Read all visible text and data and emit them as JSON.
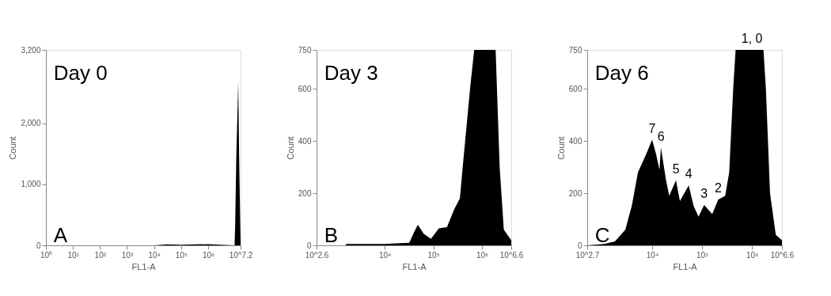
{
  "chart_data": [
    {
      "type": "area",
      "xlabel": "FL1-A",
      "ylabel": "Count",
      "log": "x",
      "grid": false,
      "annotations": [
        "Day 0",
        "A"
      ],
      "xlim": [
        1,
        15848932
      ],
      "xticks": [
        {
          "value": 1,
          "label": "10⁰"
        },
        {
          "value": 10,
          "label": "10¹"
        },
        {
          "value": 100,
          "label": "10²"
        },
        {
          "value": 1000,
          "label": "10³"
        },
        {
          "value": 10000,
          "label": "10⁴"
        },
        {
          "value": 100000,
          "label": "10⁵"
        },
        {
          "value": 1000000,
          "label": "10⁶"
        },
        {
          "value": 15848932,
          "label": "10^7.2"
        }
      ],
      "ylim": [
        0,
        3200
      ],
      "yticks": [
        0,
        {
          "value": 1000,
          "label": "1,000"
        },
        {
          "value": 2000,
          "label": "2,000"
        },
        {
          "value": 3200,
          "label": "3,200"
        }
      ],
      "series": [
        {
          "color": "#000000",
          "x": [
            1,
            10000,
            30000,
            100000,
            1000000,
            9500000,
            10000000,
            11000000,
            13000000,
            14000000,
            15848932
          ],
          "values": [
            0,
            0,
            15,
            10,
            20,
            0,
            350,
            1450,
            2680,
            1450,
            0
          ]
        }
      ]
    },
    {
      "type": "area",
      "xlabel": "FL1-A",
      "ylabel": "Count",
      "log": "x",
      "grid": false,
      "annotations": [
        "Day 3",
        "B"
      ],
      "xlim": [
        398.1,
        3981072
      ],
      "xticks": [
        {
          "value": 398.1,
          "label": "10^2.6"
        },
        {
          "value": 10000,
          "label": "10⁴"
        },
        {
          "value": 100000,
          "label": "10⁵"
        },
        {
          "value": 1000000,
          "label": "10⁶"
        },
        {
          "value": 3981072,
          "label": "10^6.6"
        }
      ],
      "ylim": [
        0,
        750
      ],
      "yticks": [
        0,
        200,
        400,
        600,
        750
      ],
      "series": [
        {
          "color": "#000000",
          "x": [
            1600,
            10000,
            32000,
            40000,
            48000,
            63000,
            89000,
            130000,
            190000,
            270000,
            350000,
            400000,
            580000,
            690000,
            1900000,
            2300000,
            2800000,
            3981072
          ],
          "values": [
            5,
            5,
            10,
            50,
            79,
            45,
            25,
            65,
            70,
            140,
            180,
            300,
            620,
            750,
            750,
            300,
            60,
            20
          ]
        }
      ]
    },
    {
      "type": "area",
      "xlabel": "FL1-A",
      "ylabel": "Count",
      "log": "x",
      "grid": false,
      "annotations": [
        "Day 6",
        "C",
        {
          "text": "7",
          "x": 10000,
          "y": 405
        },
        {
          "text": "6",
          "x": 15000,
          "y": 375
        },
        {
          "text": "5",
          "x": 30000,
          "y": 250
        },
        {
          "text": "4",
          "x": 54000,
          "y": 230
        },
        {
          "text": "3",
          "x": 110000,
          "y": 155
        },
        {
          "text": "2",
          "x": 210000,
          "y": 175
        },
        {
          "text": "1, 0",
          "x": 1000000,
          "y": 750
        }
      ],
      "xlim": [
        501.2,
        3981072
      ],
      "xticks": [
        {
          "value": 501.2,
          "label": "10^2.7"
        },
        {
          "value": 10000,
          "label": "10⁴"
        },
        {
          "value": 100000,
          "label": "10⁵"
        },
        {
          "value": 1000000,
          "label": "10⁶"
        },
        {
          "value": 3981072,
          "label": "10^6.6"
        }
      ],
      "ylim": [
        0,
        750
      ],
      "yticks": [
        0,
        200,
        400,
        600,
        750
      ],
      "series": [
        {
          "color": "#000000",
          "x": [
            501.2,
            1100,
            1800,
            2900,
            3900,
            5200,
            7600,
            10000,
            12000,
            14000,
            15000,
            19000,
            22000,
            30000,
            36000,
            54000,
            68000,
            85000,
            110000,
            160000,
            210000,
            290000,
            350000,
            420000,
            470000,
            1700000,
            1900000,
            2300000,
            3000000,
            3981072
          ],
          "values": [
            0,
            5,
            15,
            60,
            150,
            280,
            350,
            405,
            350,
            290,
            375,
            250,
            190,
            250,
            170,
            230,
            150,
            110,
            155,
            120,
            175,
            190,
            280,
            600,
            750,
            750,
            600,
            200,
            40,
            20
          ]
        }
      ]
    }
  ]
}
